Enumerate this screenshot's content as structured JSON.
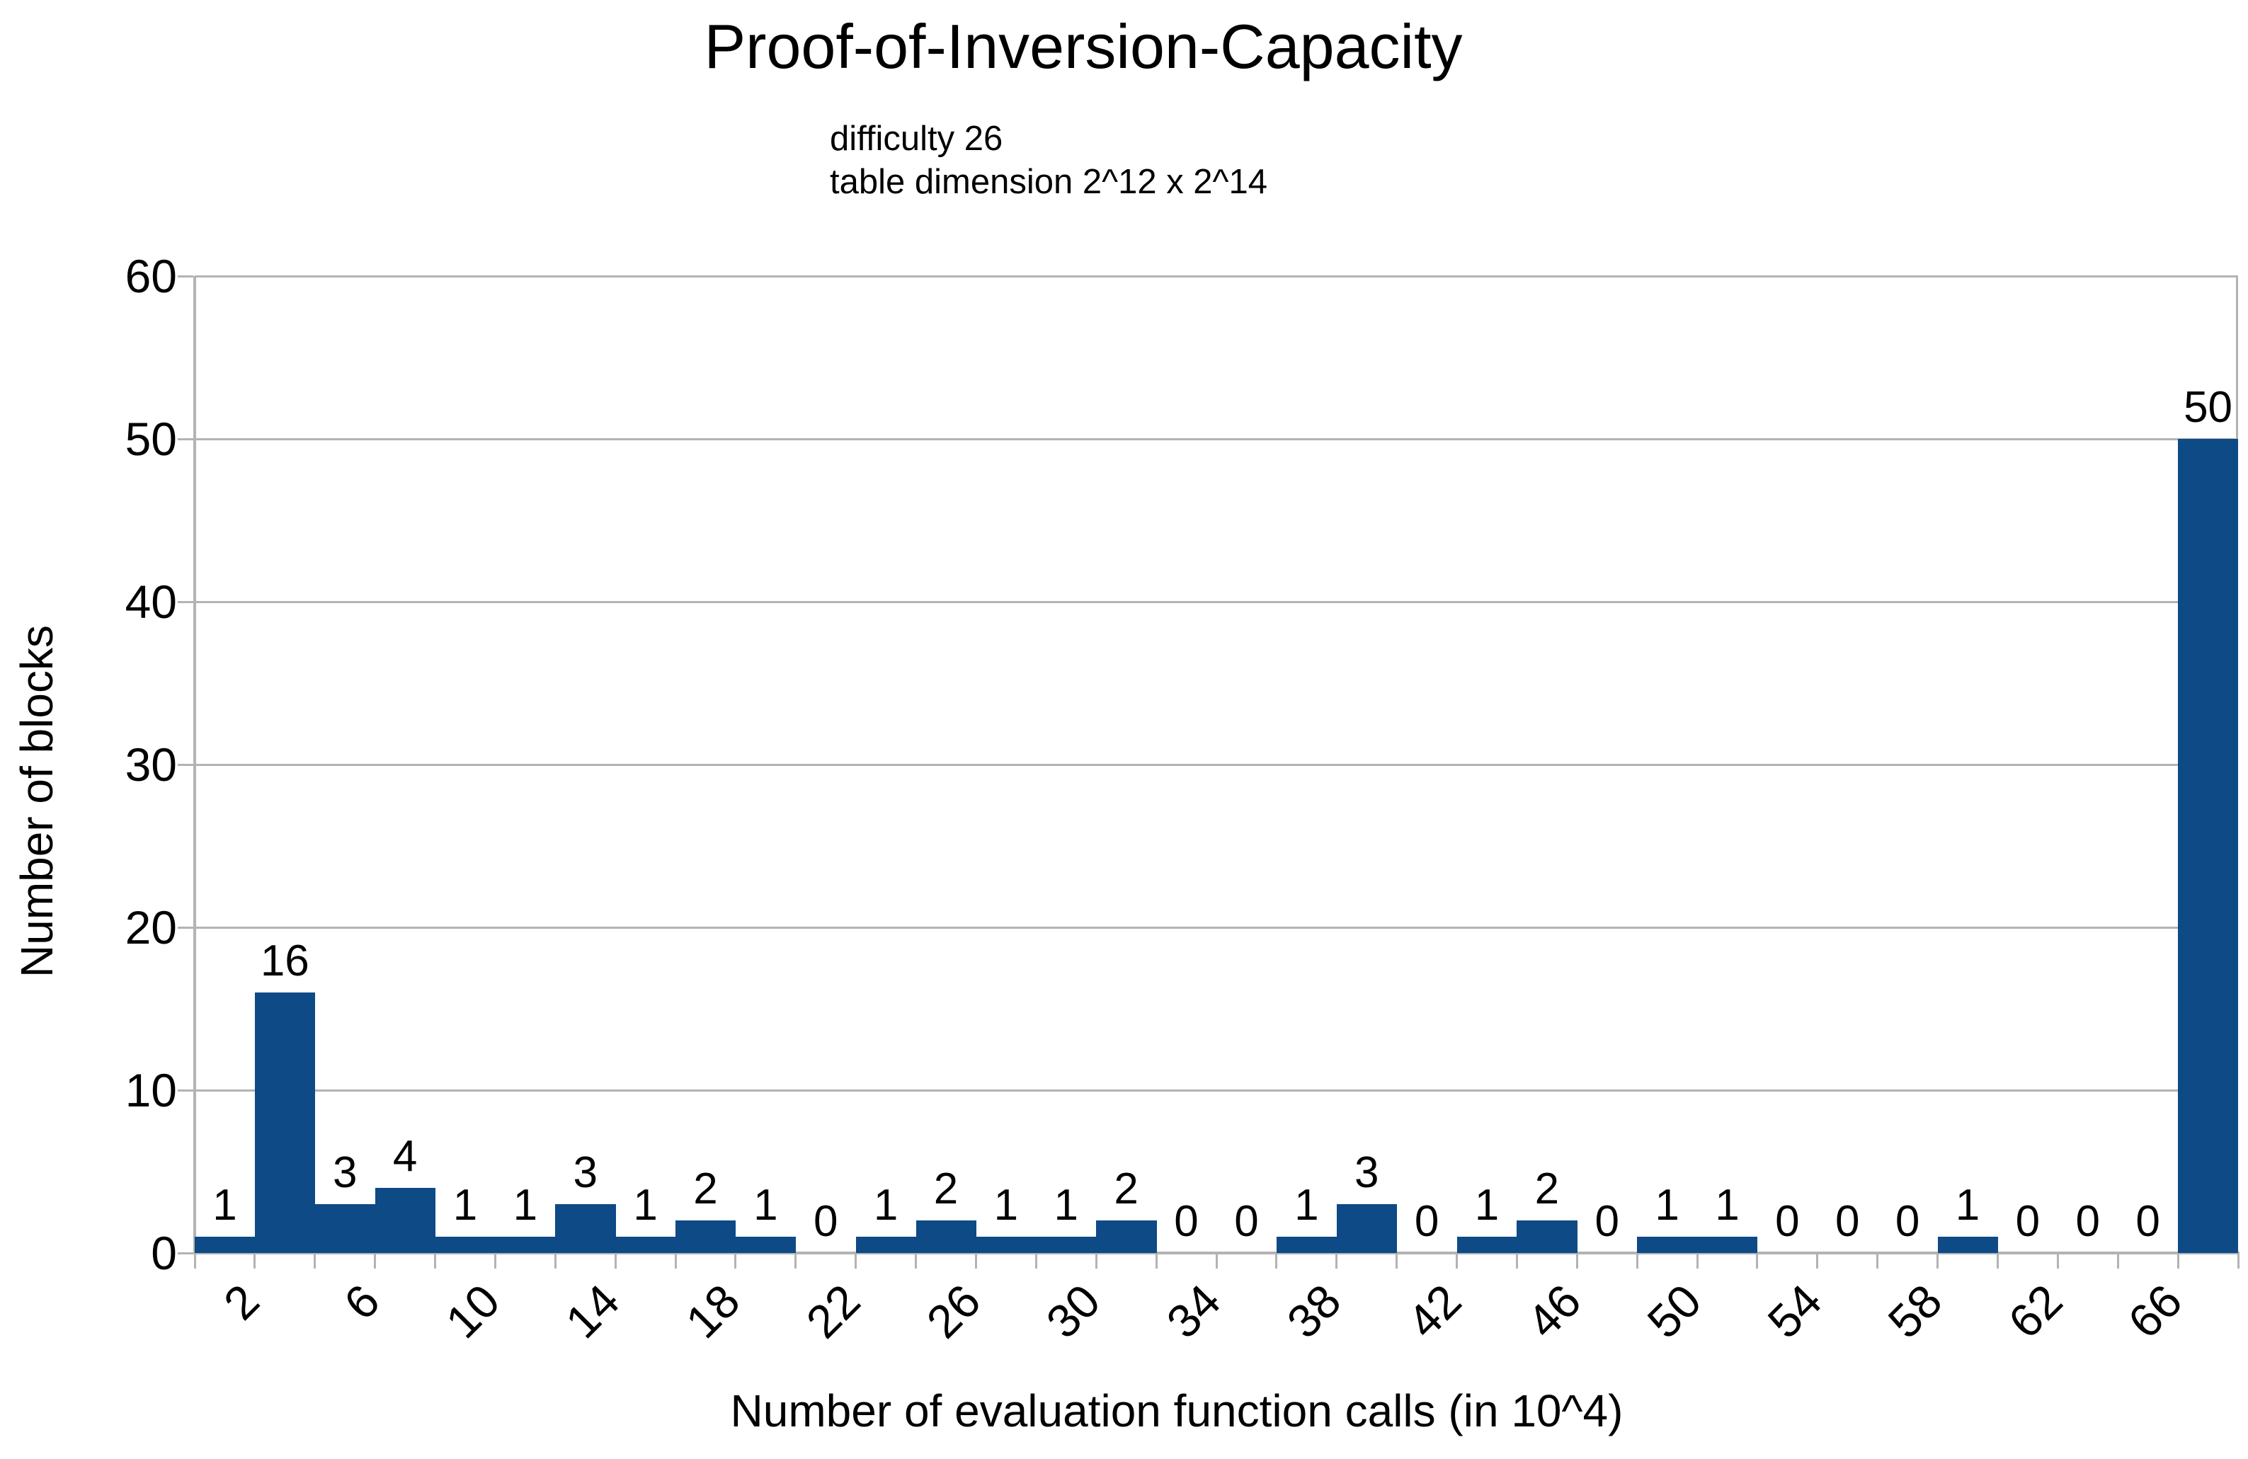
{
  "chart_data": {
    "type": "bar",
    "title": "Proof-of-Inversion-Capacity",
    "subtitle_line1": "difficulty 26",
    "subtitle_line2": "table dimension 2^12 x 2^14",
    "xlabel": "Number of evaluation function calls (in 10^4)",
    "ylabel": "Number of blocks",
    "categories": [
      2,
      4,
      6,
      8,
      10,
      12,
      14,
      16,
      18,
      20,
      22,
      24,
      26,
      28,
      30,
      32,
      34,
      36,
      38,
      40,
      42,
      44,
      46,
      48,
      50,
      52,
      54,
      56,
      58,
      60,
      62,
      64,
      66,
      68
    ],
    "values": [
      1,
      16,
      3,
      4,
      1,
      1,
      3,
      1,
      2,
      1,
      0,
      1,
      2,
      1,
      1,
      2,
      0,
      0,
      1,
      3,
      0,
      1,
      2,
      0,
      1,
      1,
      0,
      0,
      0,
      1,
      0,
      0,
      0,
      50
    ],
    "labeled_x_ticks": [
      2,
      6,
      10,
      14,
      18,
      22,
      26,
      30,
      34,
      38,
      42,
      46,
      50,
      54,
      58,
      62,
      66
    ],
    "yticks": [
      0,
      10,
      20,
      30,
      40,
      50,
      60
    ],
    "ylim": [
      0,
      60
    ],
    "grid": "horizontal",
    "legend": "none",
    "data_labels": "above-bars",
    "bar_color": "#0d4a86",
    "axis_color": "#b3b3b3",
    "text_color": "#000000",
    "background_color": "#ffffff"
  }
}
